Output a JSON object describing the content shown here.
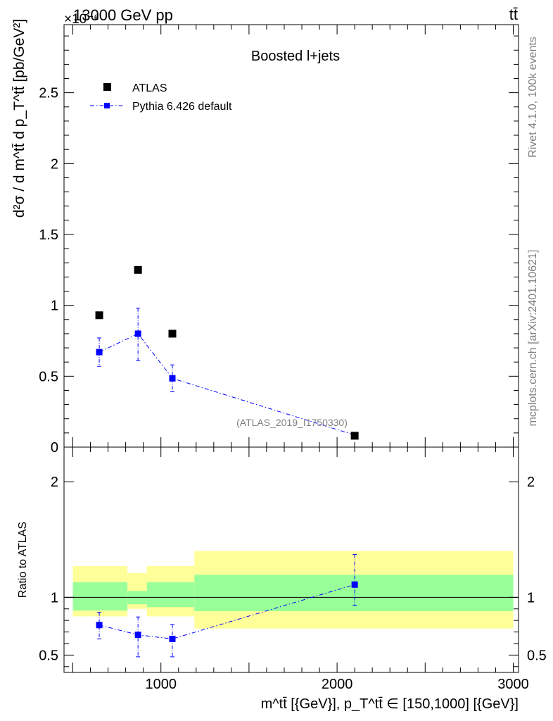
{
  "header": {
    "energy_label": "13000 GeV pp",
    "process_label": "tt̄",
    "exponent_label": "×10⁻⁶"
  },
  "side_labels": {
    "rivet": "Rivet 4.1.0,  100k events",
    "mcplots": "mcplots.cern.ch [arXiv:2401.10621]"
  },
  "legend": {
    "data_label": "ATLAS",
    "mc_label": "Pythia 6.426 default"
  },
  "colors": {
    "data": "#000000",
    "mc": "#0000ff",
    "band_inner": "#99ff99",
    "band_outer": "#ffff99"
  },
  "chart_data": [
    {
      "type": "scatter",
      "title": "Boosted l+jets",
      "analysis_tag": "(ATLAS_2019_I1750330)",
      "ylabel": "d²σ / d m^tt̄ d p_T^tt̄ [pb/GeV²]",
      "y_scale_factor": "1e-6",
      "xlim": [
        450,
        3030
      ],
      "ylim": [
        0,
        2.98
      ],
      "yticks": [
        0.5,
        1,
        1.5,
        2,
        2.5
      ],
      "ytick_labels": [
        "0.5",
        "1",
        "1.5",
        "2",
        "2.5"
      ],
      "y_zero_label": "0",
      "series": [
        {
          "name": "ATLAS",
          "x": [
            650,
            870,
            1065,
            2100
          ],
          "y": [
            0.93,
            1.25,
            0.8,
            0.08
          ]
        },
        {
          "name": "Pythia 6.426 default",
          "x": [
            650,
            870,
            1065,
            2100
          ],
          "y": [
            0.67,
            0.8,
            0.485,
            0.085
          ],
          "yerr_low": [
            0.1,
            0.19,
            0.095,
            0.01
          ],
          "yerr_high": [
            0.1,
            0.18,
            0.095,
            0.01
          ]
        }
      ]
    },
    {
      "type": "scatter",
      "ylabel": "Ratio to ATLAS",
      "xlabel": "m^tt̄ [{GeV}], p_T^tt̄ ∈ [150,1000] [{GeV}]",
      "xlim": [
        450,
        3030
      ],
      "ylim": [
        0.35,
        2.3
      ],
      "xticks": [
        1000,
        2000,
        3000
      ],
      "xtick_labels": [
        "1000",
        "2000",
        "3000"
      ],
      "yticks": [
        0.5,
        1,
        2
      ],
      "ytick_labels": [
        "0.5",
        "1",
        "2"
      ],
      "bands": [
        {
          "x0": 500,
          "x1": 810,
          "inner": [
            0.885,
            1.13
          ],
          "outer": [
            0.835,
            1.27
          ]
        },
        {
          "x0": 810,
          "x1": 920,
          "inner": [
            0.94,
            1.055
          ],
          "outer": [
            0.9,
            1.21
          ]
        },
        {
          "x0": 920,
          "x1": 1190,
          "inner": [
            0.915,
            1.13
          ],
          "outer": [
            0.835,
            1.27
          ]
        },
        {
          "x0": 1190,
          "x1": 3000,
          "inner": [
            0.88,
            1.195
          ],
          "outer": [
            0.73,
            1.4
          ]
        }
      ],
      "series": [
        {
          "name": "Pythia 6.426 default",
          "x": [
            650,
            870,
            1065,
            2100
          ],
          "y": [
            0.76,
            0.675,
            0.64,
            1.11
          ],
          "yerr_low": [
            0.12,
            0.19,
            0.155,
            0.18
          ],
          "yerr_high": [
            0.11,
            0.155,
            0.125,
            0.26
          ]
        }
      ]
    }
  ]
}
